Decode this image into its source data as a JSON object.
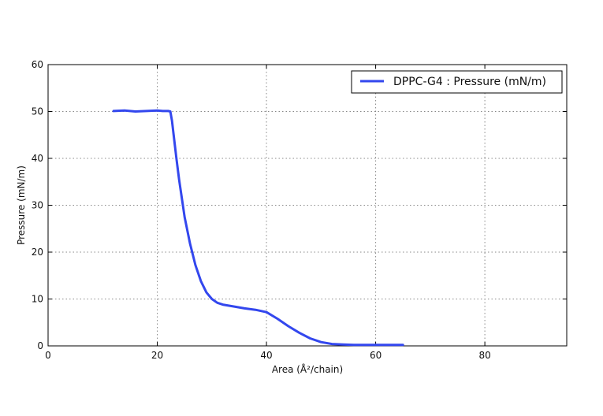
{
  "chart_data": {
    "type": "line",
    "xlabel": "Area (Å²/chain)",
    "ylabel": "Pressure (mN/m)",
    "xlim": [
      0,
      95
    ],
    "ylim": [
      0,
      60
    ],
    "xticks": [
      0,
      20,
      40,
      60,
      80
    ],
    "yticks": [
      0,
      10,
      20,
      30,
      40,
      50,
      60
    ],
    "grid": true,
    "legend_position": "top-right",
    "series": [
      {
        "name": "DPPC-G4 : Pressure (mN/m)",
        "color": "#3347ee",
        "x": [
          12,
          14,
          16,
          18,
          20,
          21,
          22,
          22.4,
          22.7,
          23,
          23.5,
          24,
          24.5,
          25,
          26,
          27,
          28,
          29,
          30,
          31,
          32,
          34,
          36,
          38,
          40,
          42,
          44,
          46,
          48,
          50,
          52,
          54,
          56,
          58,
          60,
          62,
          64,
          65
        ],
        "y": [
          50.1,
          50.2,
          50.0,
          50.1,
          50.2,
          50.1,
          50.1,
          50.0,
          48.0,
          45.0,
          40.0,
          35.5,
          31.5,
          27.5,
          21.8,
          17.2,
          13.8,
          11.4,
          10.0,
          9.2,
          8.8,
          8.4,
          8.0,
          7.7,
          7.2,
          5.8,
          4.2,
          2.8,
          1.6,
          0.8,
          0.4,
          0.3,
          0.2,
          0.2,
          0.2,
          0.2,
          0.2,
          0.2
        ]
      }
    ]
  }
}
